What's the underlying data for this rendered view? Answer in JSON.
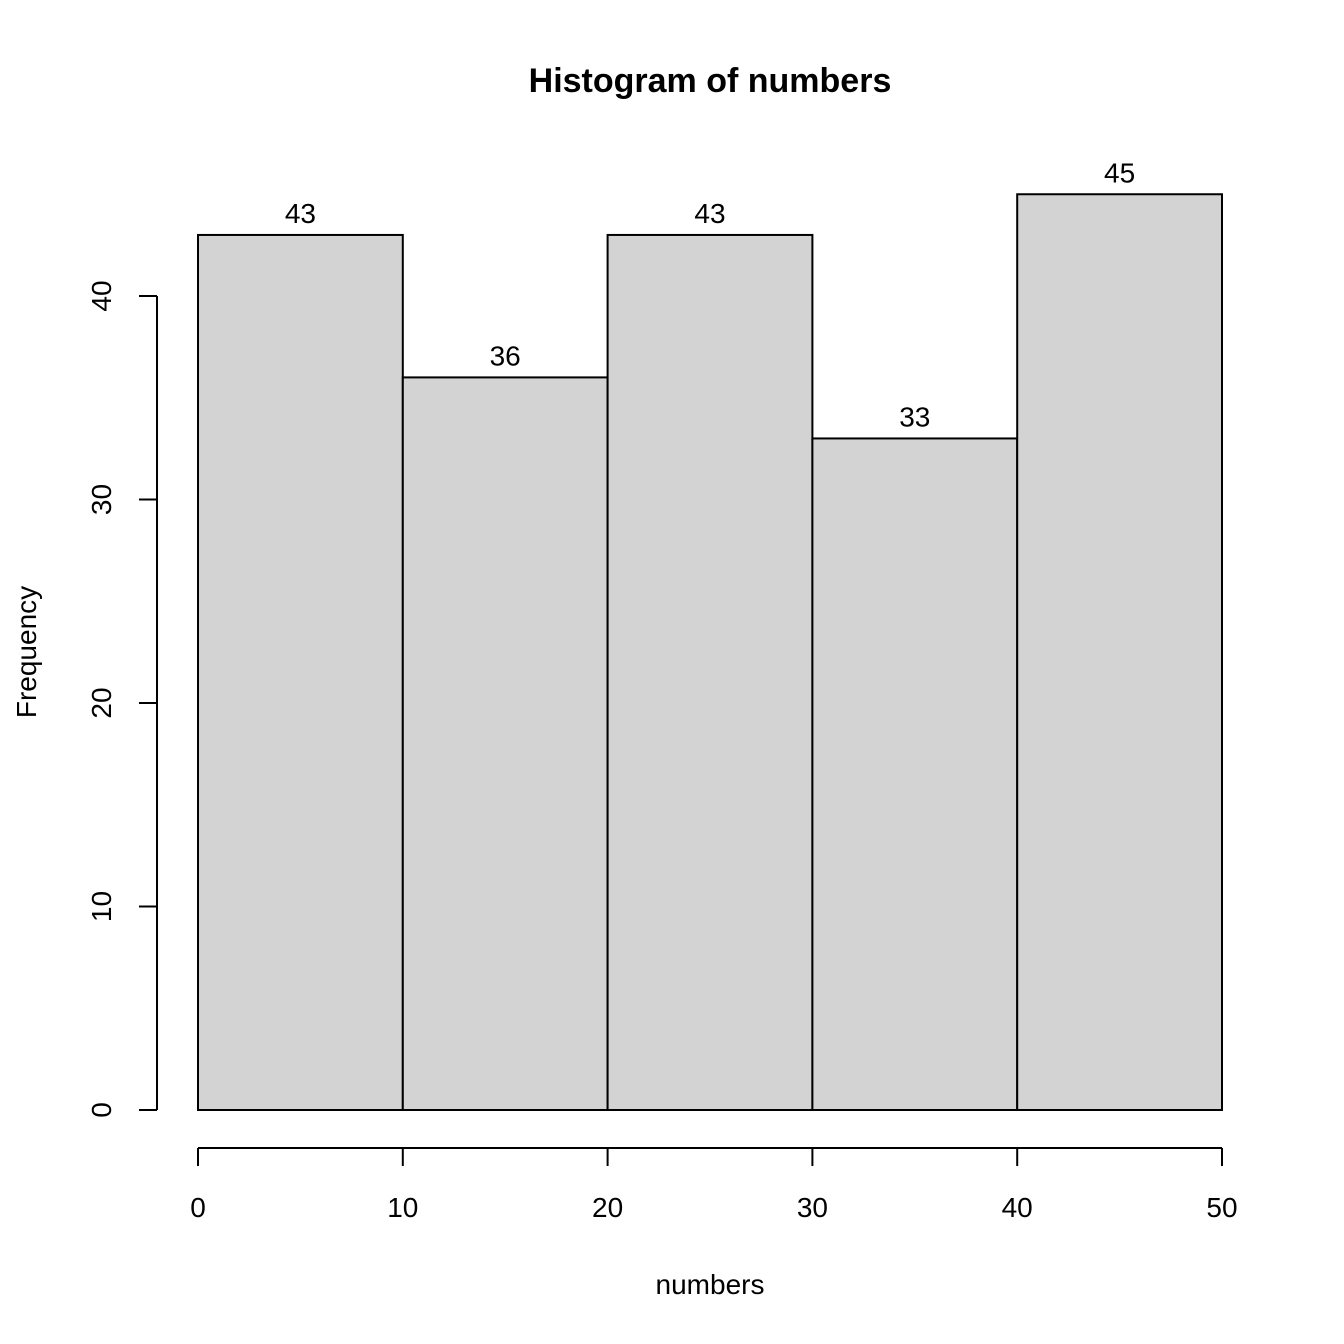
{
  "chart_data": {
    "type": "bar",
    "title": "Histogram of numbers",
    "xlabel": "numbers",
    "ylabel": "Frequency",
    "bins": [
      {
        "start": 0,
        "end": 10,
        "count": 43
      },
      {
        "start": 10,
        "end": 20,
        "count": 36
      },
      {
        "start": 20,
        "end": 30,
        "count": 43
      },
      {
        "start": 30,
        "end": 40,
        "count": 33
      },
      {
        "start": 40,
        "end": 50,
        "count": 45
      }
    ],
    "x_ticks": [
      "0",
      "10",
      "20",
      "30",
      "40",
      "50"
    ],
    "y_ticks": [
      "0",
      "10",
      "20",
      "30",
      "40"
    ],
    "xlim": [
      0,
      50
    ],
    "ylim": [
      0,
      45
    ],
    "grid": false,
    "legend": "none",
    "bar_color": "#d3d3d3",
    "border_color": "#000000"
  }
}
